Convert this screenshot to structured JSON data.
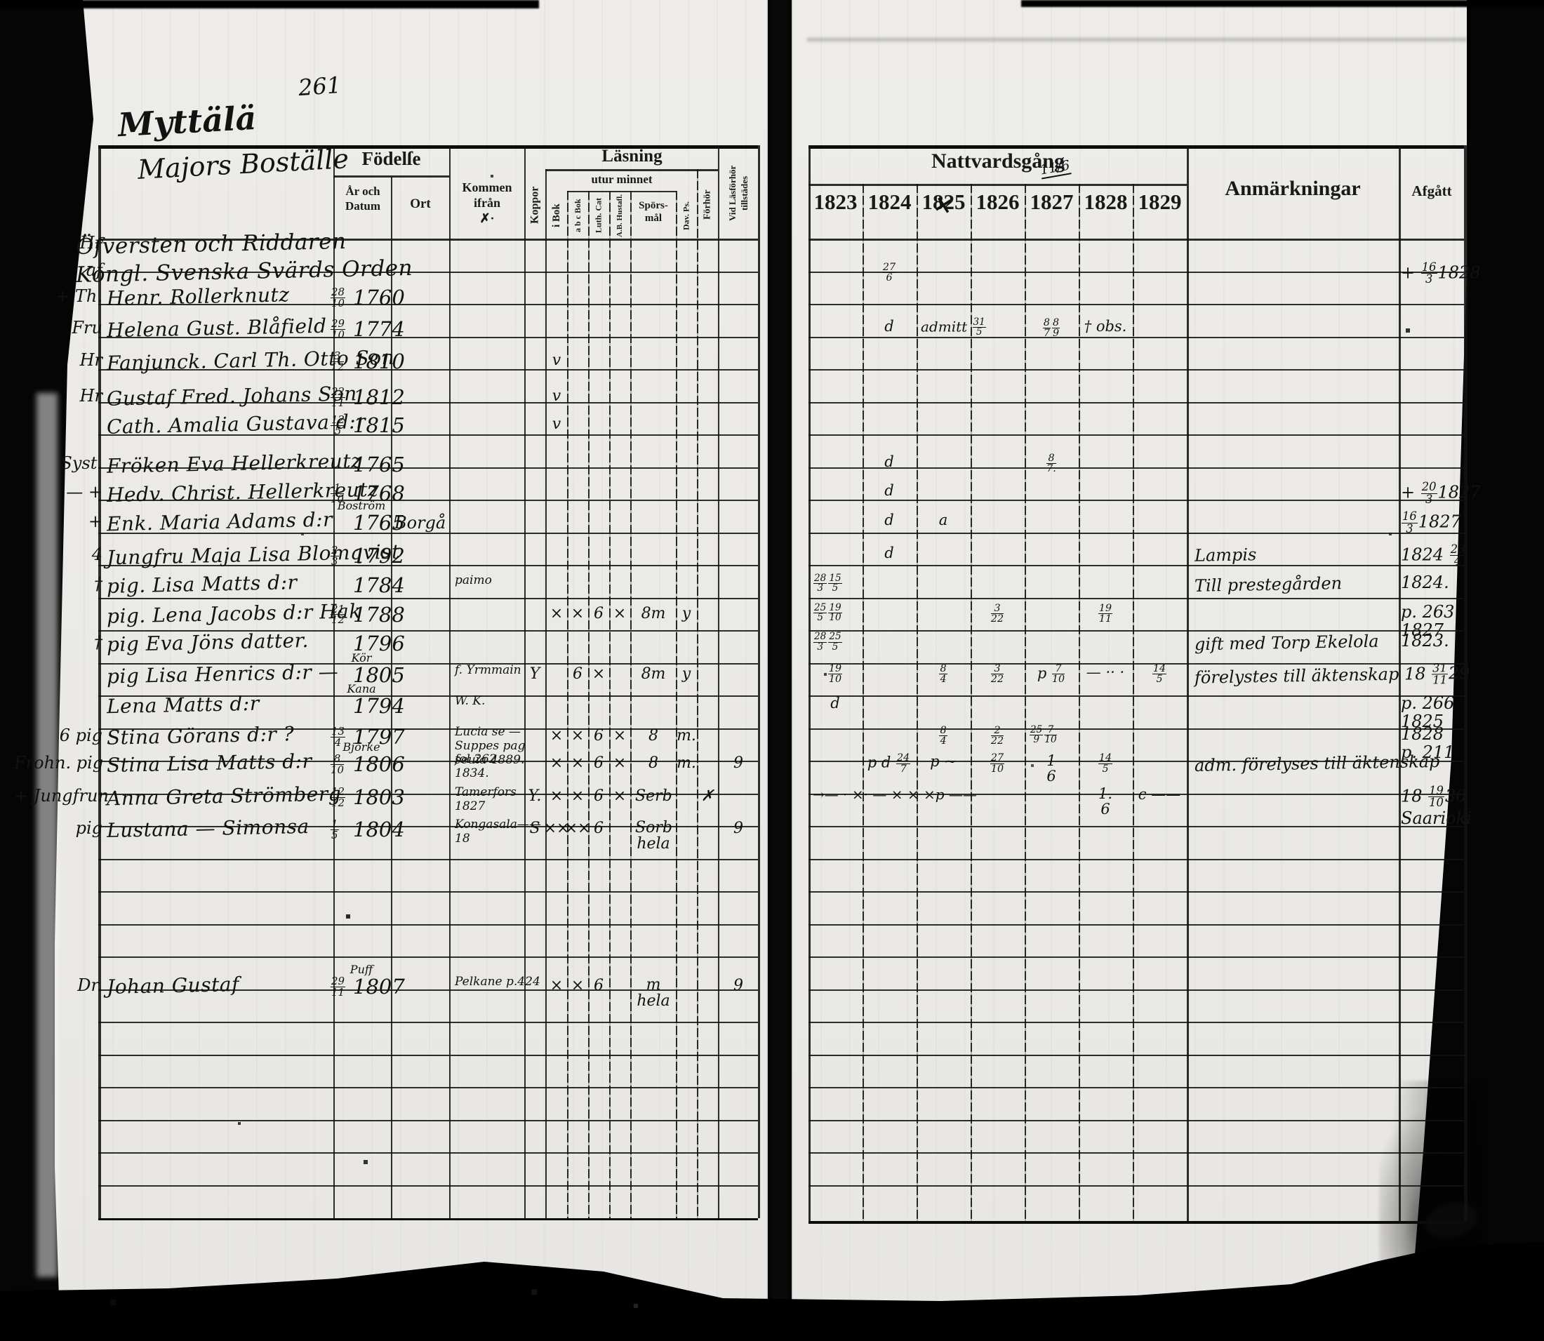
{
  "page_number": "261",
  "left_page": {
    "heading": {
      "line1": "Myttälä",
      "line2": "Majors Boställe"
    },
    "header": {
      "fodelse": "Födelſe",
      "ar_och_datum": "År och\nDatum",
      "ort": "Ort",
      "kommen_ifran": "Kommen\nifrån\n✗·",
      "koppor": "Koppor",
      "lasning": "Läsning",
      "utur_minnet": "utur minnet",
      "i_bok": "i Bok",
      "abc_bok": "a b c Bok",
      "luth_cat": "Luth. Cat",
      "hustafla": "A.B. Hustafl.",
      "sporsmal": "Spörs-\nmål",
      "dav_ps": "Dav. Ps.",
      "forhor": "Förhör",
      "vid_lasforhor": "Vid Läsförhör\ntillstädes"
    },
    "rows": [
      {
        "row": -0.35,
        "margin": "Hr",
        "name": "Öfversten och Riddaren",
        "title": true
      },
      {
        "row": 0.5,
        "margin": "af",
        "name": "Kongl. Svenska Svärds Orden",
        "title": true
      },
      {
        "row": 1.3,
        "margin": "+ Th.",
        "name": "Henr. Rollerknutz",
        "datum": "28/10",
        "year": "1760"
      },
      {
        "row": 2.25,
        "margin": "Fru",
        "name": "Helena Gust. Blåfield",
        "datum": "29/10",
        "year": "1774"
      },
      {
        "row": 3.25,
        "margin": "Hr",
        "name": "Fanjunck. Carl Th. Otto Son",
        "datum": "3/12",
        "year": "1810",
        "marks": [
          [
            "ibok",
            "v"
          ]
        ]
      },
      {
        "row": 4.35,
        "margin": "Hr",
        "name": "Gustaf Fred. Johans Son",
        "datum": "22/11",
        "year": "1812",
        "marks": [
          [
            "ibok",
            "v"
          ]
        ]
      },
      {
        "row": 5.2,
        "margin": "",
        "name": "Cath. Amalia Gustava d:r",
        "datum": "12/5",
        "year": "1815",
        "marks": [
          [
            "ibok",
            "v"
          ]
        ]
      },
      {
        "row": 6.4,
        "margin": "Syst.",
        "name": "Fröken Eva Hellerkreutz",
        "year": "1765"
      },
      {
        "row": 7.3,
        "margin": "—  +",
        "name": "Hedv. Christ. Hellerkreutz",
        "datum": "1/10",
        "year": "1768"
      },
      {
        "row": 8.2,
        "margin": "+",
        "name": "Enk. Maria Adams d:r",
        "over": "Boström",
        "year": "1765",
        "ort": "Borgå"
      },
      {
        "row": 9.2,
        "margin": "4",
        "name": "Jungfru Maja Lisa Blomqvist",
        "datum": "2/3",
        "year": "1792"
      },
      {
        "row": 10.1,
        "margin": "†",
        "name": "pig. Lisa Matts d:r",
        "year": "1784",
        "kommen": [
          "paimo"
        ]
      },
      {
        "row": 11.0,
        "margin": "",
        "name": "pig. Lena Jacobs d:r Hak",
        "datum": "21/12",
        "year": "1788",
        "marks": [
          [
            "ibok",
            "×"
          ],
          [
            "abc",
            "×"
          ],
          [
            "luth",
            "6"
          ],
          [
            "hust",
            "×"
          ],
          [
            "spors",
            "8m"
          ],
          [
            "dav",
            "y"
          ]
        ]
      },
      {
        "row": 11.9,
        "margin": "†",
        "name": "pig Eva Jöns datter.",
        "year": "1796"
      },
      {
        "row": 12.85,
        "margin": "",
        "name": "pig Lisa Henrics d:r —",
        "over": "Kör",
        "year": "1805",
        "kommen": [
          "f. Yrmmain"
        ],
        "marks": [
          [
            "koppor",
            "Y"
          ],
          [
            "abc",
            "6"
          ],
          [
            "luth",
            "×"
          ],
          [
            "spors",
            "8m"
          ],
          [
            "dav",
            "y"
          ]
        ]
      },
      {
        "row": 13.8,
        "margin": "",
        "name": "Lena Matts d:r",
        "over": "Kana",
        "year": "1794",
        "kommen": [
          "W. K."
        ]
      },
      {
        "row": 14.75,
        "margin": "6 pig",
        "name": "Stina Görans d:r  ?",
        "datum": "13/4",
        "year": "1797",
        "kommen": [
          "Lucia se —",
          "Suppes pag",
          "seuia 4889."
        ],
        "marks": [
          [
            "ibok",
            "×"
          ],
          [
            "abc",
            "×"
          ],
          [
            "luth",
            "6"
          ],
          [
            "hust",
            "×"
          ],
          [
            "spors",
            "8"
          ],
          [
            "dav",
            "m."
          ]
        ]
      },
      {
        "row": 15.6,
        "margin": "Frohn.  pig",
        "name": "Stina Lisa Matts d:r",
        "over": "Björke",
        "datum": "8/10",
        "year": "1806",
        "kommen": [
          "fol 262.",
          "1834."
        ],
        "marks": [
          [
            "ibok",
            "×"
          ],
          [
            "abc",
            "×"
          ],
          [
            "luth",
            "6"
          ],
          [
            "hust",
            "×"
          ],
          [
            "spors",
            "8"
          ],
          [
            "dav",
            "m."
          ],
          [
            "vid",
            "9"
          ]
        ]
      },
      {
        "row": 16.6,
        "margin": "+ Jungfrun",
        "name": "Anna Greta Strömberg",
        "datum": "12/12",
        "year": "1803",
        "kommen": [
          "Tamerfors",
          "1827"
        ],
        "marks": [
          [
            "koppor",
            "Y."
          ],
          [
            "ibok",
            "×"
          ],
          [
            "abc",
            "×"
          ],
          [
            "luth",
            "6"
          ],
          [
            "hust",
            "×"
          ],
          [
            "spors",
            "Serb"
          ],
          [
            "forhor",
            "✗"
          ]
        ]
      },
      {
        "row": 17.6,
        "margin": "pig",
        "name": "Lustana — Simonsa",
        "datum": "1/5",
        "year": "1804",
        "kommen": [
          "Kongasala——",
          "18"
        ],
        "marks": [
          [
            "koppor",
            "S"
          ],
          [
            "ibok",
            "××"
          ],
          [
            "abc",
            "××"
          ],
          [
            "luth",
            "6"
          ],
          [
            "spors",
            "Sorb|hela"
          ],
          [
            "vid",
            "9"
          ]
        ]
      },
      {
        "row": 22.4,
        "margin": "Dr.",
        "name": "Johan Gustaf",
        "over": "Puff",
        "datum": "29/11",
        "year": "1807",
        "kommen": [
          "Pelkane p.424"
        ],
        "marks": [
          [
            "ibok",
            "×"
          ],
          [
            "abc",
            "×"
          ],
          [
            "luth",
            "6"
          ],
          [
            "spors",
            "m|hela"
          ],
          [
            "vid",
            "9"
          ]
        ]
      }
    ]
  },
  "right_page": {
    "header": {
      "nattvardsgang": "Nattvardsgång",
      "years": [
        "1823",
        "1824",
        "1825",
        "1826",
        "1827",
        "1828",
        "1829"
      ],
      "anmarkningar": "Anmärkningar",
      "afgatt": "Afgått",
      "scribble_1827": "11/6",
      "strike_1825": "×"
    },
    "rows": [
      {
        "row": 0.55,
        "y": {
          "1824": "27/6"
        },
        "afg": [
          "+ 16/3 1828"
        ]
      },
      {
        "row": 2.25,
        "y": {
          "1824": "d",
          "1825": "admitt 31/5",
          "1827": "8/7 8/9",
          "1828": "† obs."
        }
      },
      {
        "row": 6.4,
        "y": {
          "1824": "d",
          "1827": "8/7."
        }
      },
      {
        "row": 7.3,
        "y": {
          "1824": "d"
        },
        "afg": [
          "+ 20/3 1827"
        ]
      },
      {
        "row": 8.2,
        "y": {
          "1824": "d",
          "1825": "a"
        },
        "afg": [
          "16/3 1827"
        ]
      },
      {
        "row": 9.2,
        "y": {
          "1824": "d"
        },
        "anm": "Lampis",
        "afg": [
          "1824 23/4"
        ]
      },
      {
        "row": 10.1,
        "y": {
          "1823": "28/3 15/5"
        },
        "anm": "Till prestegården",
        "afg": [
          "1824."
        ]
      },
      {
        "row": 11.0,
        "y": {
          "1823": "25/5 19/10",
          "1826": "3/22",
          "1828": "19/11"
        },
        "afg": [
          "p. 263",
          "1827"
        ]
      },
      {
        "row": 11.9,
        "y": {
          "1823": "28/3 25/5"
        },
        "anm": "gift med Torp Ekelola",
        "afg": [
          "1823."
        ]
      },
      {
        "row": 12.85,
        "y": {
          "1823": "19/10",
          "1825": "8/4",
          "1826": "3/22",
          "1827": "p 7/10",
          "1828": "— ·· ·",
          "1829": "14/5"
        },
        "anm": "förelystes till äktenskap 18 31/11 29"
      },
      {
        "row": 13.8,
        "y": {
          "1823": "d"
        },
        "afg": [
          "p. 266",
          "1825"
        ]
      },
      {
        "row": 14.75,
        "y": {
          "1825": "8/4",
          "1826": "2/22",
          "1827": "25/9 7/10"
        },
        "afg": [
          "1828",
          "p. 211"
        ]
      },
      {
        "row": 15.6,
        "y": {
          "1824": "p d 24/7",
          "1825": "p ~",
          "1826": "27/10",
          "1827": "1|6",
          "1828": "14/5"
        },
        "anm": "adm.   förelyses till äktenskap"
      },
      {
        "row": 16.6,
        "y": {
          "1823": "→— · ×· — ×   ×   ×p ——",
          "1828": "1.|6",
          "1829": "c ——"
        },
        "afg": [
          "18 19/10 30",
          "Saarioki"
        ]
      }
    ]
  }
}
